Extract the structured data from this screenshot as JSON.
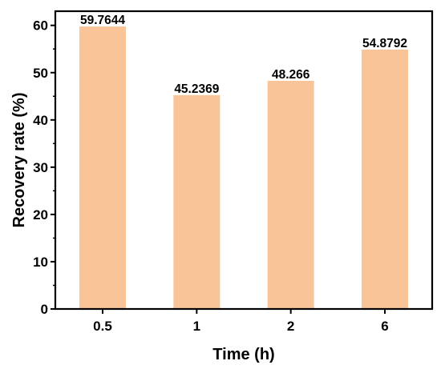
{
  "chart_data": {
    "type": "bar",
    "categories": [
      "0.5",
      "1",
      "2",
      "6"
    ],
    "values": [
      59.7644,
      45.2369,
      48.266,
      54.8792
    ],
    "value_labels": [
      "59.7644",
      "45.2369",
      "48.266",
      "54.8792"
    ],
    "xlabel": "Time (h)",
    "ylabel": "Recovery rate (%)",
    "ylim": [
      0,
      63
    ],
    "yticks": [
      0,
      10,
      20,
      30,
      40,
      50,
      60
    ],
    "grid": false,
    "legend": "none",
    "bar_color": "#F9C497",
    "axis_color": "#000000"
  }
}
